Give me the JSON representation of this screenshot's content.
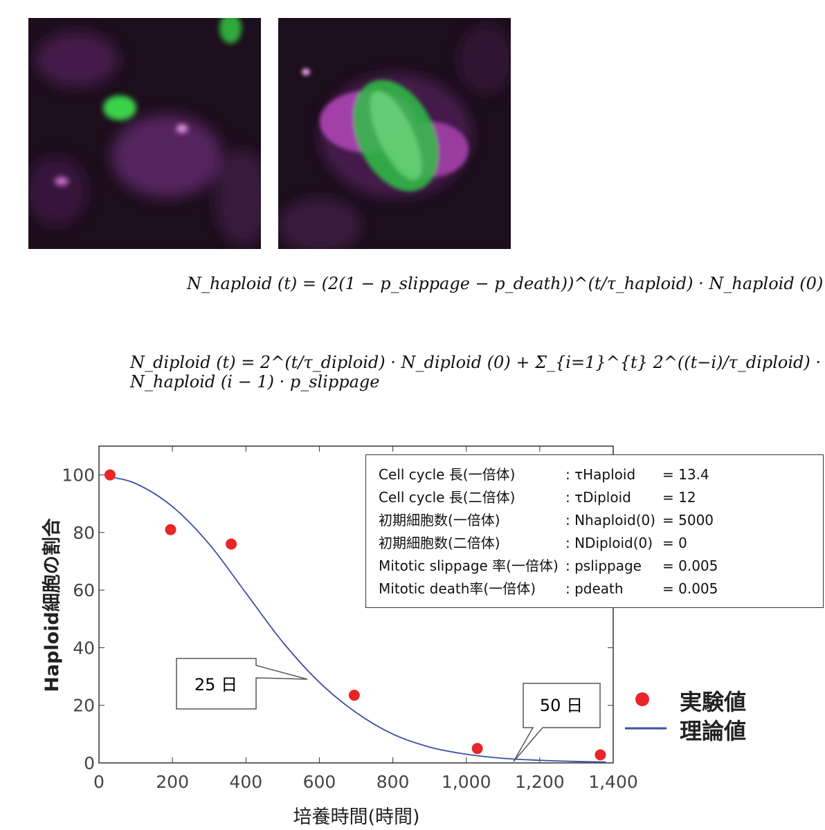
{
  "equations": {
    "haploid": "N_haploid (t) = (2(1 − p_slippage − p_death))^(t/τ_haploid) · N_haploid (0)",
    "diploid": "N_diploid (t) = 2^(t/τ_diploid) · N_diploid (0) + Σ_{i=1}^{t} 2^((t−i)/τ_diploid) · N_haploid (i − 1) · p_slippage"
  },
  "parameters": [
    {
      "label": "Cell cycle 長(一倍体)",
      "symbol": ": τHaploid",
      "value": "= 13.4"
    },
    {
      "label": "Cell cycle 長(二倍体)",
      "symbol": ": τDiploid",
      "value": "= 12"
    },
    {
      "label": "初期細胞数(一倍体)",
      "symbol": ": Nhaploid(0)",
      "value": "= 5000"
    },
    {
      "label": "初期細胞数(二倍体)",
      "symbol": ": NDiploid(0)",
      "value": "= 0"
    },
    {
      "label": "Mitotic slippage 率(一倍体)",
      "symbol": ": pslippage",
      "value": "= 0.005"
    },
    {
      "label": "Mitotic death率(一倍体)",
      "symbol": ": pdeath",
      "value": "= 0.005"
    }
  ],
  "colors": {
    "experimental": "#e8262a",
    "theoretical": "#3a4fa8",
    "axis": "#333333"
  },
  "chart_data": {
    "type": "scatter",
    "xlabel": "培養時間(時間)",
    "ylabel": "Haploid細胞の割合",
    "xlim": [
      0,
      1400
    ],
    "ylim": [
      0,
      100
    ],
    "x_ticks": [
      0,
      200,
      400,
      600,
      800,
      1000,
      1200,
      1400
    ],
    "x_tick_labels": [
      "0",
      "200",
      "400",
      "600",
      "800",
      "1,000",
      "1,200",
      "1,400"
    ],
    "y_ticks": [
      0,
      20,
      40,
      60,
      80,
      100
    ],
    "y_tick_labels": [
      "0",
      "20",
      "40",
      "60",
      "80",
      "100"
    ],
    "series": [
      {
        "name": "実験値",
        "kind": "scatter",
        "x": [
          30,
          195,
          360,
          695,
          1030,
          1365
        ],
        "y": [
          100,
          81,
          76,
          23.5,
          5,
          2.8
        ]
      },
      {
        "name": "理論値",
        "kind": "line",
        "x": [
          20,
          100,
          200,
          300,
          400,
          500,
          600,
          700,
          800,
          900,
          1000,
          1100,
          1200,
          1300,
          1380
        ],
        "y": [
          99.5,
          97,
          89,
          76,
          59,
          42,
          28,
          17.5,
          10,
          5.5,
          3,
          1.6,
          0.9,
          0.5,
          0.3
        ]
      }
    ],
    "annotations": [
      {
        "text": "25 日",
        "x": 600,
        "y": 30
      },
      {
        "text": "50 日",
        "x": 1200,
        "y": 0.9
      }
    ],
    "legend_position": "bottom-right"
  }
}
